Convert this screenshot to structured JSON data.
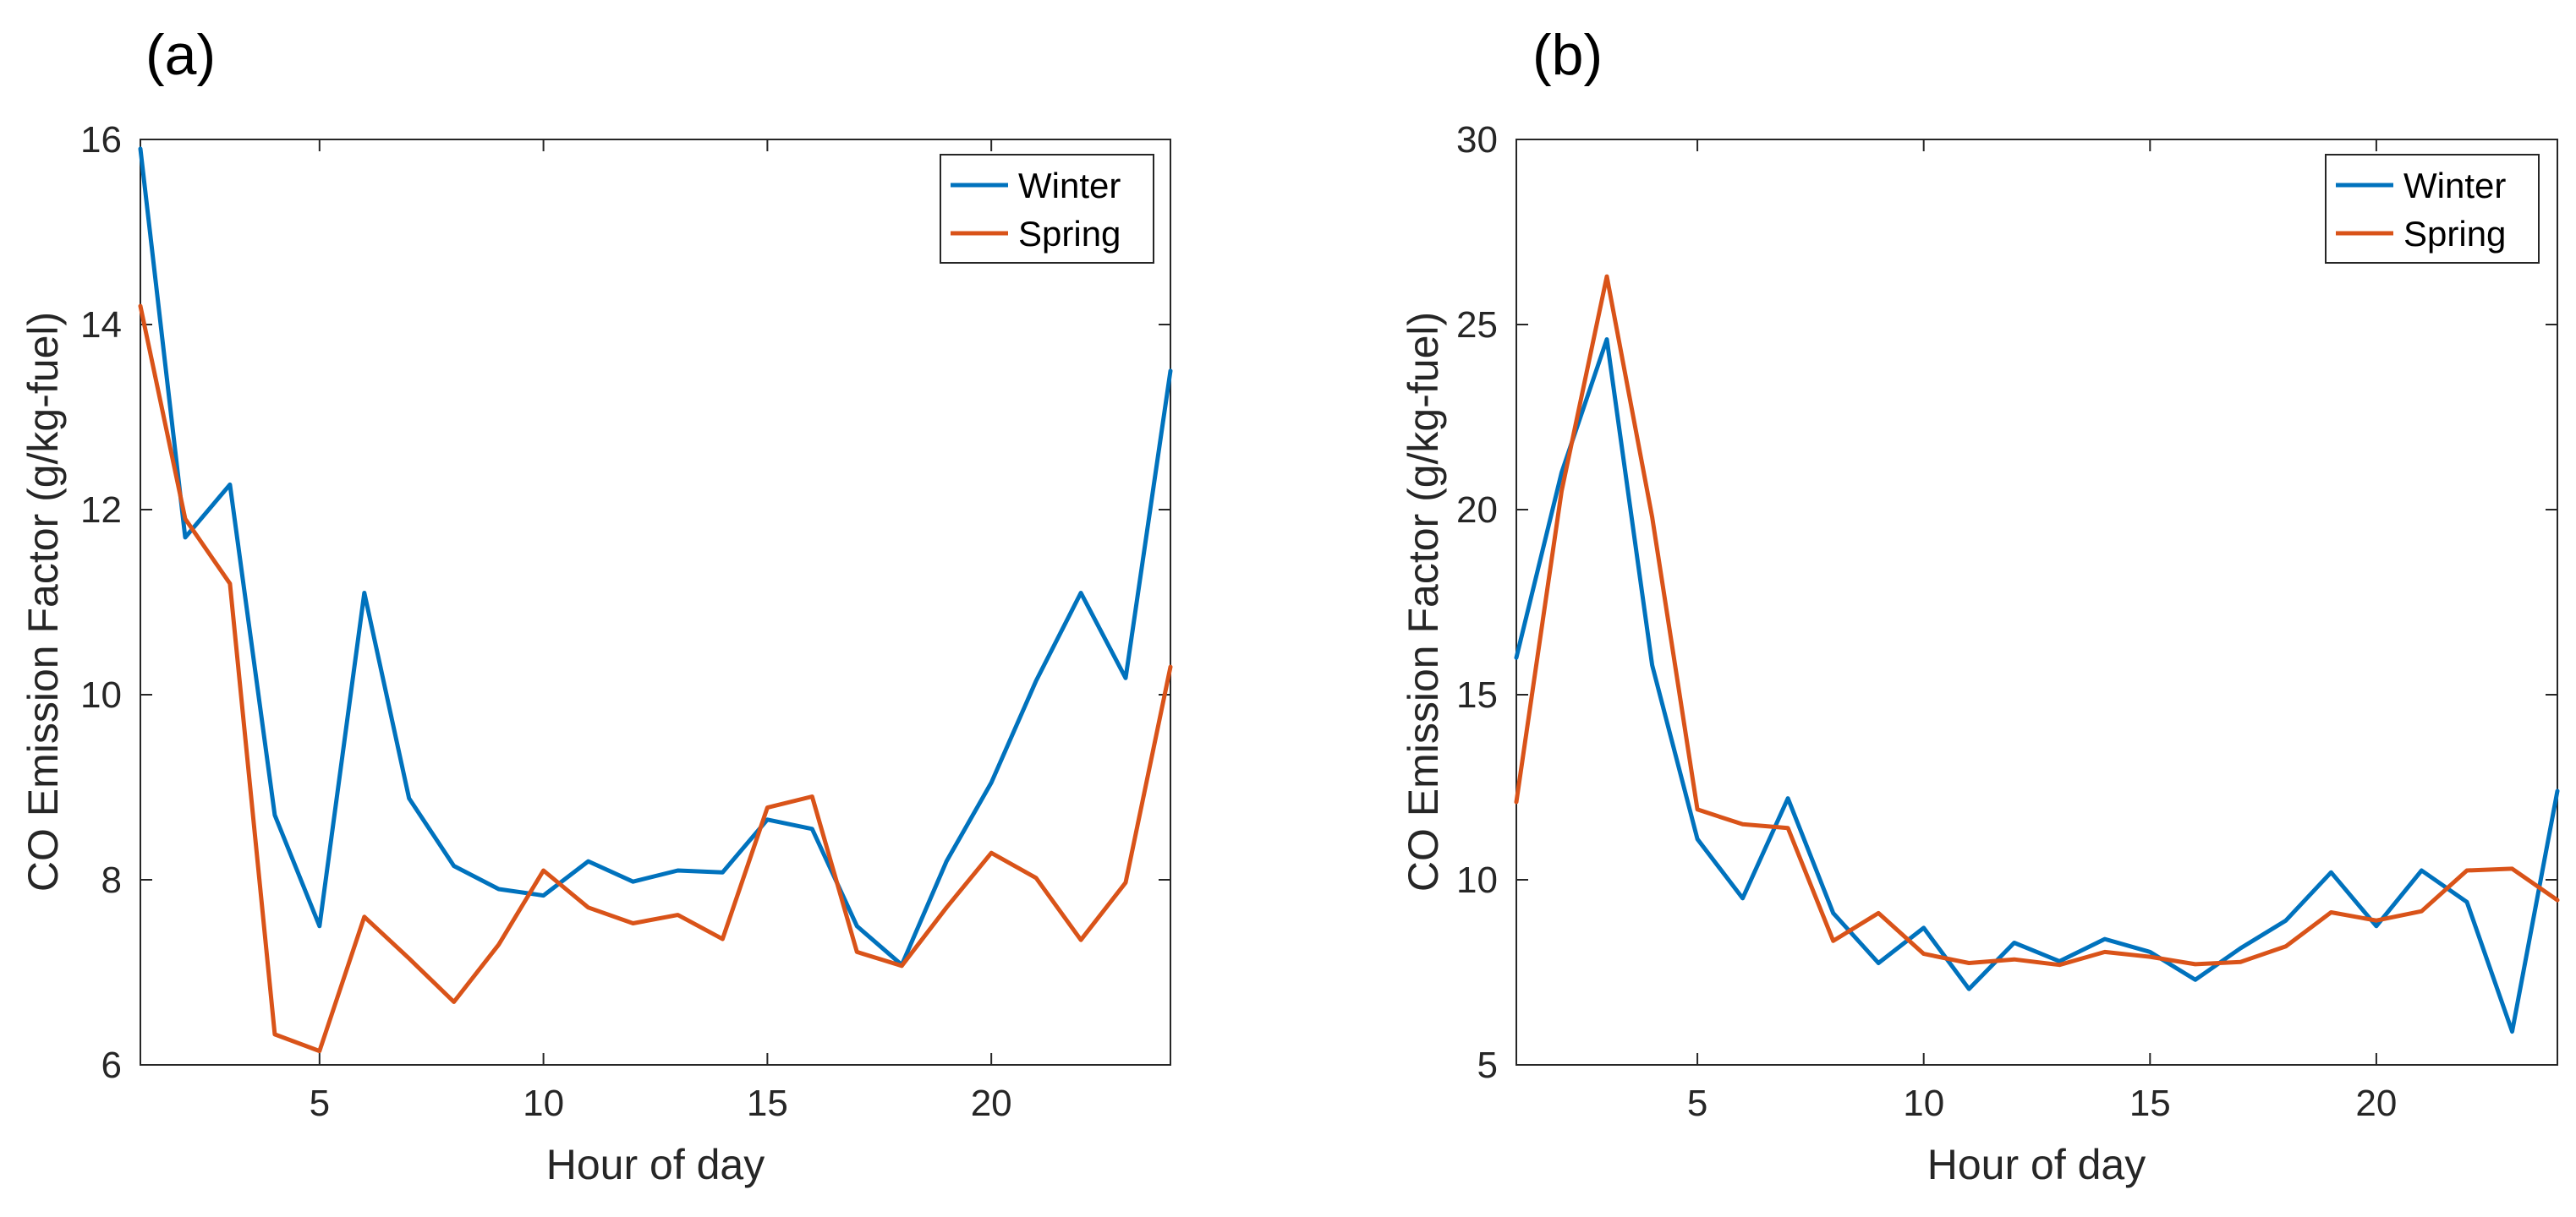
{
  "chart_data": [
    {
      "type": "line",
      "panel_label": "(a)",
      "xlabel": "Hour of day",
      "ylabel": "CO Emission Factor (g/kg-fuel)",
      "xlim": [
        1,
        24
      ],
      "ylim": [
        6,
        16
      ],
      "xticks": [
        5,
        10,
        15,
        20
      ],
      "yticks": [
        6,
        8,
        10,
        12,
        14,
        16
      ],
      "x": [
        1,
        2,
        3,
        4,
        5,
        6,
        7,
        8,
        9,
        10,
        11,
        12,
        13,
        14,
        15,
        16,
        17,
        18,
        19,
        20,
        21,
        22,
        23,
        24
      ],
      "legend_position": "top-right",
      "series": [
        {
          "name": "Winter",
          "color": "#0072BD",
          "values": [
            15.9,
            11.7,
            12.27,
            8.7,
            7.5,
            11.1,
            8.88,
            8.15,
            7.9,
            7.83,
            8.2,
            7.98,
            8.1,
            8.08,
            8.65,
            8.55,
            7.5,
            7.08,
            8.2,
            9.05,
            10.15,
            11.1,
            10.18,
            13.5
          ]
        },
        {
          "name": "Spring",
          "color": "#D95319",
          "values": [
            14.2,
            11.9,
            11.2,
            6.33,
            6.15,
            7.6,
            7.15,
            6.68,
            7.3,
            8.1,
            7.7,
            7.53,
            7.62,
            7.36,
            8.78,
            8.9,
            7.22,
            7.07,
            7.7,
            8.29,
            8.02,
            7.35,
            7.97,
            10.3
          ]
        }
      ]
    },
    {
      "type": "line",
      "panel_label": "(b)",
      "xlabel": "Hour of day",
      "ylabel": "CO Emission Factor (g/kg-fuel)",
      "xlim": [
        1,
        24
      ],
      "ylim": [
        5,
        30
      ],
      "xticks": [
        5,
        10,
        15,
        20
      ],
      "yticks": [
        5,
        10,
        15,
        20,
        25,
        30
      ],
      "x": [
        1,
        2,
        3,
        4,
        5,
        6,
        7,
        8,
        9,
        10,
        11,
        12,
        13,
        14,
        15,
        16,
        17,
        18,
        19,
        20,
        21,
        22,
        23,
        24
      ],
      "legend_position": "top-right",
      "series": [
        {
          "name": "Winter",
          "color": "#0072BD",
          "values": [
            16,
            21,
            24.6,
            15.8,
            11.1,
            9.5,
            12.2,
            9.1,
            7.75,
            8.7,
            7.05,
            8.3,
            7.8,
            8.4,
            8.05,
            7.3,
            8.15,
            8.9,
            10.2,
            8.75,
            10.25,
            9.4,
            5.9,
            12.4
          ]
        },
        {
          "name": "Spring",
          "color": "#D95319",
          "values": [
            12.1,
            20.5,
            26.3,
            19.8,
            11.9,
            11.5,
            11.4,
            8.35,
            9.1,
            8.0,
            7.75,
            7.85,
            7.7,
            8.05,
            7.92,
            7.72,
            7.78,
            8.2,
            9.12,
            8.9,
            9.15,
            10.25,
            10.3,
            9.45
          ]
        }
      ]
    }
  ]
}
